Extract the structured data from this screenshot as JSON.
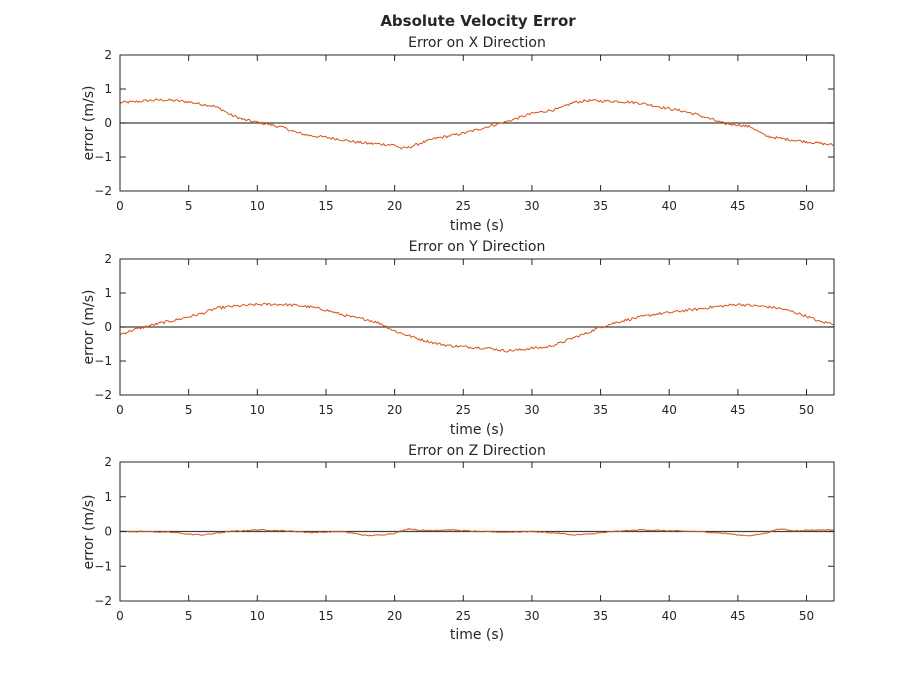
{
  "figure": {
    "title": "Absolute Velocity Error"
  },
  "colors": {
    "series": "#d95319",
    "axis": "#262626",
    "zero_line": "#404040",
    "background": "#ffffff"
  },
  "chart_data": [
    {
      "type": "line",
      "title": "Error on X Direction",
      "xlabel": "time (s)",
      "ylabel": "error (m/s)",
      "xlim": [
        0,
        52
      ],
      "ylim": [
        -2,
        2
      ],
      "xticks": [
        0,
        5,
        10,
        15,
        20,
        25,
        30,
        35,
        40,
        45,
        50
      ],
      "yticks": [
        -2,
        -1,
        0,
        1,
        2
      ],
      "zero_line": true,
      "grid": false,
      "noise": 0.04,
      "series": [
        {
          "x": [
            0,
            1,
            2,
            3,
            4,
            5,
            6,
            6.8,
            7.5,
            8,
            9,
            10,
            11,
            12,
            13,
            14,
            15,
            16,
            17,
            18,
            19,
            20,
            20.5,
            21,
            22,
            23,
            24,
            25,
            26,
            27,
            28,
            29,
            30,
            31,
            32,
            33,
            34,
            35,
            36,
            37,
            38,
            39,
            40,
            41,
            42,
            43,
            44,
            45,
            46,
            47,
            48,
            49,
            50,
            51,
            52
          ],
          "y": [
            0.6,
            0.62,
            0.66,
            0.68,
            0.66,
            0.62,
            0.55,
            0.5,
            0.38,
            0.25,
            0.1,
            0.02,
            -0.05,
            -0.15,
            -0.3,
            -0.38,
            -0.42,
            -0.48,
            -0.55,
            -0.6,
            -0.62,
            -0.65,
            -0.75,
            -0.72,
            -0.58,
            -0.45,
            -0.38,
            -0.3,
            -0.2,
            -0.08,
            0.02,
            0.15,
            0.28,
            0.35,
            0.42,
            0.6,
            0.66,
            0.65,
            0.64,
            0.62,
            0.58,
            0.5,
            0.42,
            0.35,
            0.25,
            0.12,
            -0.02,
            -0.05,
            -0.12,
            -0.38,
            -0.45,
            -0.5,
            -0.55,
            -0.6,
            -0.65
          ]
        }
      ]
    },
    {
      "type": "line",
      "title": "Error on Y Direction",
      "xlabel": "time (s)",
      "ylabel": "error (m/s)",
      "xlim": [
        0,
        52
      ],
      "ylim": [
        -2,
        2
      ],
      "xticks": [
        0,
        5,
        10,
        15,
        20,
        25,
        30,
        35,
        40,
        45,
        50
      ],
      "yticks": [
        -2,
        -1,
        0,
        1,
        2
      ],
      "zero_line": true,
      "grid": false,
      "noise": 0.04,
      "series": [
        {
          "x": [
            0,
            1,
            2,
            3,
            4,
            5,
            6,
            7,
            8,
            9,
            10,
            11,
            12,
            13,
            14,
            15,
            16,
            17,
            18,
            19,
            20,
            21,
            22,
            23,
            24,
            25,
            26,
            27,
            28,
            29,
            30,
            31,
            32,
            33,
            34,
            35,
            36,
            37,
            38,
            39,
            40,
            41,
            42,
            43,
            44,
            45,
            46,
            47,
            48,
            49,
            50,
            51,
            52
          ],
          "y": [
            -0.22,
            -0.08,
            0.02,
            0.12,
            0.2,
            0.3,
            0.4,
            0.55,
            0.6,
            0.63,
            0.66,
            0.67,
            0.66,
            0.63,
            0.58,
            0.5,
            0.38,
            0.28,
            0.22,
            0.1,
            -0.12,
            -0.25,
            -0.38,
            -0.48,
            -0.55,
            -0.58,
            -0.6,
            -0.63,
            -0.7,
            -0.68,
            -0.62,
            -0.6,
            -0.48,
            -0.32,
            -0.18,
            0.0,
            0.12,
            0.22,
            0.3,
            0.38,
            0.42,
            0.48,
            0.52,
            0.58,
            0.62,
            0.67,
            0.63,
            0.6,
            0.55,
            0.45,
            0.32,
            0.15,
            0.1
          ]
        }
      ]
    },
    {
      "type": "line",
      "title": "Error on Z Direction",
      "xlabel": "time (s)",
      "ylabel": "error (m/s)",
      "xlim": [
        0,
        52
      ],
      "ylim": [
        -2,
        2
      ],
      "xticks": [
        0,
        5,
        10,
        15,
        20,
        25,
        30,
        35,
        40,
        45,
        50
      ],
      "yticks": [
        -2,
        -1,
        0,
        1,
        2
      ],
      "zero_line": true,
      "grid": false,
      "noise": 0.015,
      "series": [
        {
          "x": [
            0,
            2,
            4,
            5,
            6,
            8,
            10,
            12,
            14,
            16,
            17,
            18,
            19,
            20,
            21,
            22,
            24,
            26,
            28,
            30,
            32,
            33,
            34,
            36,
            38,
            40,
            42,
            44,
            45,
            46,
            47,
            48,
            49,
            50,
            52
          ],
          "y": [
            0.0,
            0.0,
            -0.03,
            -0.08,
            -0.1,
            0.0,
            0.05,
            0.02,
            -0.03,
            0.0,
            -0.05,
            -0.12,
            -0.1,
            -0.05,
            0.08,
            0.03,
            0.05,
            0.0,
            -0.02,
            0.0,
            -0.05,
            -0.1,
            -0.08,
            0.0,
            0.05,
            0.02,
            0.0,
            -0.05,
            -0.1,
            -0.12,
            -0.05,
            0.08,
            0.02,
            0.04,
            0.05
          ]
        }
      ]
    }
  ]
}
